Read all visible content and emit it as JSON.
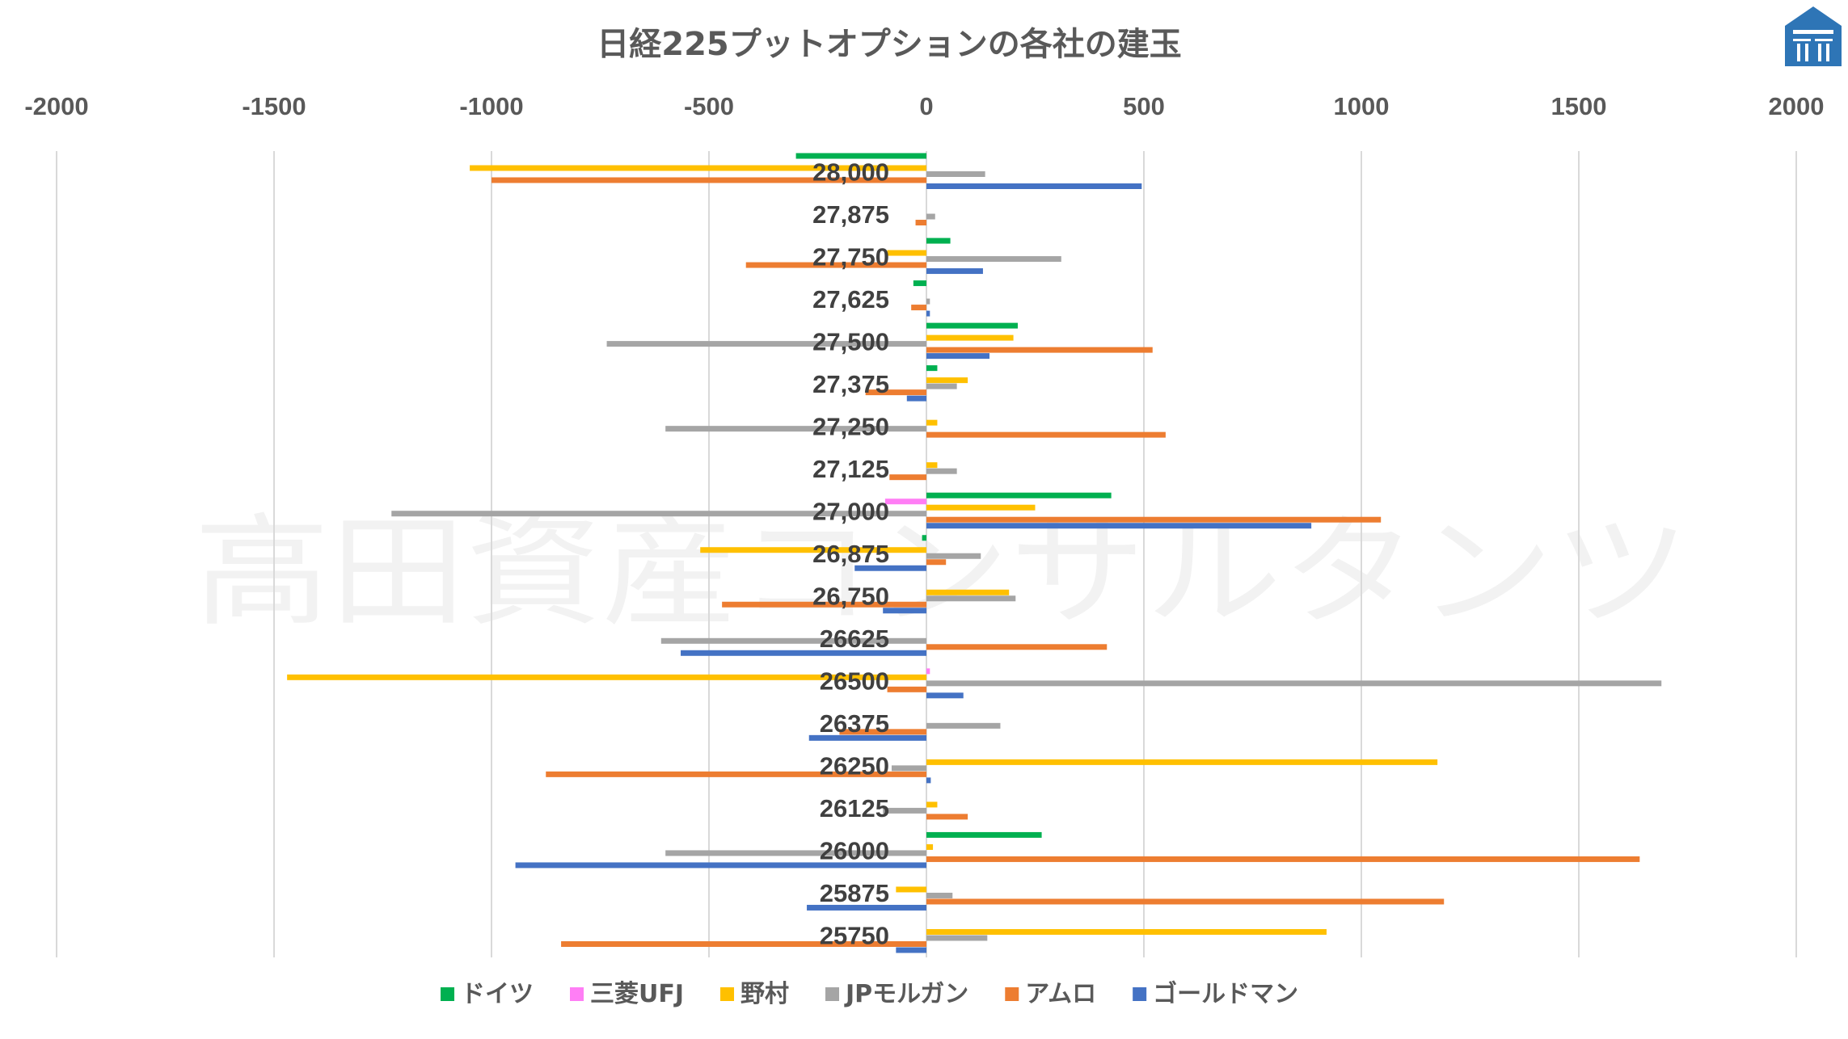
{
  "watermark": "高田資産コンサルタンツ",
  "logo": {
    "color": "#2e75b6"
  },
  "chart_data": {
    "type": "bar",
    "orientation": "horizontal",
    "title": "日経225プットオプションの各社の建玉",
    "xlim": [
      -2000,
      2000
    ],
    "xticks": [
      "-2000",
      "-1500",
      "-1000",
      "-500",
      "0",
      "500",
      "1000",
      "1500",
      "2000"
    ],
    "grid": true,
    "legend_position": "bottom",
    "categories": [
      "28,000",
      "27,875",
      "27,750",
      "27,625",
      "27,500",
      "27,375",
      "27,250",
      "27,125",
      "27,000",
      "26,875",
      "26,750",
      "26625",
      "26500",
      "26375",
      "26250",
      "26125",
      "26000",
      "25875",
      "25750"
    ],
    "series": [
      {
        "name": "ドイツ",
        "color": "#00b050",
        "values": [
          -300,
          0,
          55,
          -30,
          210,
          25,
          0,
          0,
          425,
          -10,
          0,
          0,
          0,
          0,
          0,
          0,
          265,
          0,
          0
        ]
      },
      {
        "name": "三菱UFJ",
        "color": "#ff7ef5",
        "values": [
          0,
          0,
          0,
          0,
          0,
          0,
          0,
          0,
          -95,
          0,
          0,
          0,
          8,
          0,
          0,
          0,
          0,
          0,
          0
        ]
      },
      {
        "name": "野村",
        "color": "#ffc000",
        "values": [
          -1050,
          0,
          -90,
          0,
          200,
          95,
          25,
          25,
          250,
          -520,
          190,
          0,
          -1470,
          0,
          1175,
          25,
          15,
          -70,
          920
        ]
      },
      {
        "name": "JPモルガン",
        "color": "#a5a5a5",
        "values": [
          135,
          20,
          310,
          8,
          -735,
          70,
          -600,
          70,
          -1230,
          125,
          205,
          -610,
          1690,
          170,
          -80,
          -100,
          -600,
          60,
          140
        ]
      },
      {
        "name": "アムロ",
        "color": "#ed7d31",
        "values": [
          -1000,
          -25,
          -415,
          -35,
          520,
          -140,
          550,
          -85,
          1045,
          45,
          -470,
          415,
          -90,
          -200,
          -875,
          95,
          1640,
          1190,
          -840
        ]
      },
      {
        "name": "ゴールドマン",
        "color": "#4472c4",
        "values": [
          495,
          0,
          130,
          8,
          145,
          -45,
          0,
          0,
          885,
          -165,
          -100,
          -565,
          85,
          -270,
          10,
          0,
          -945,
          -275,
          -70
        ]
      }
    ]
  }
}
